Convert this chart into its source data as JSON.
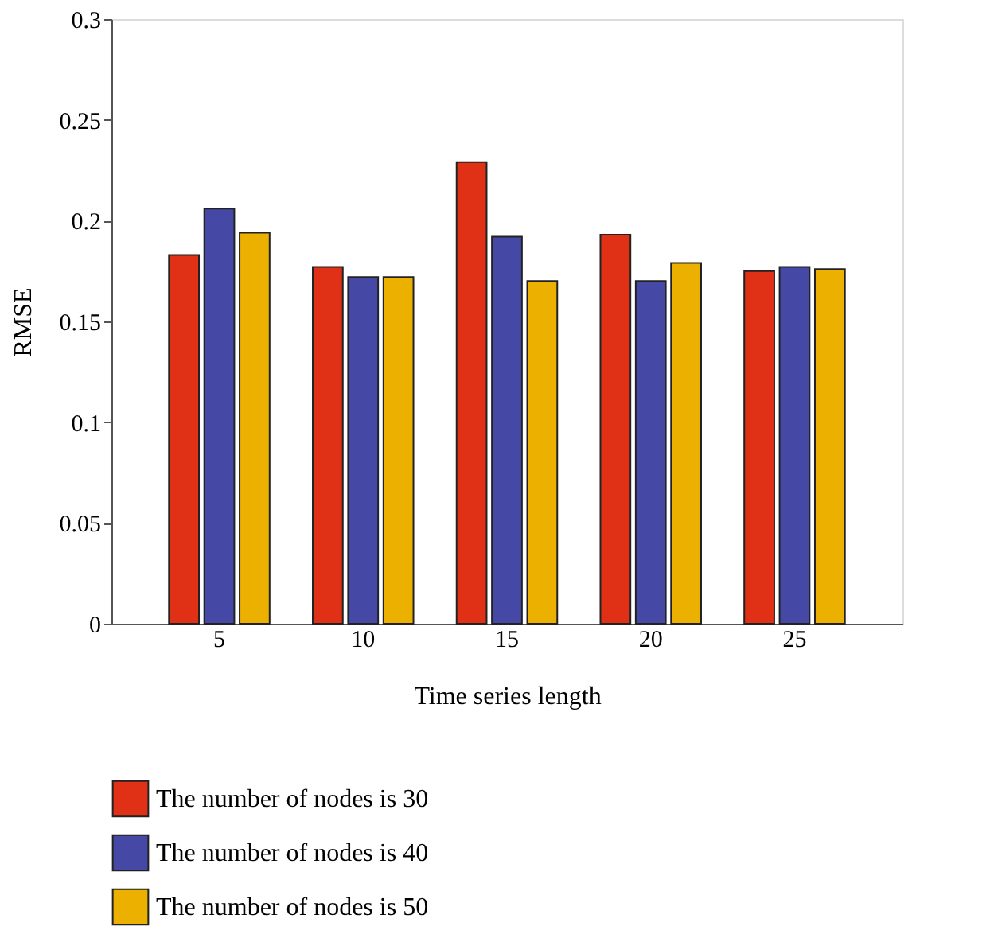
{
  "chart_data": {
    "type": "bar",
    "xlabel": "Time series length",
    "ylabel": "RMSE",
    "categories": [
      "5",
      "10",
      "15",
      "20",
      "25"
    ],
    "series": [
      {
        "name": "The number of nodes is 30",
        "color": "#e03015",
        "values": [
          0.183,
          0.177,
          0.229,
          0.193,
          0.175
        ]
      },
      {
        "name": "The number of nodes is 40",
        "color": "#4549a5",
        "values": [
          0.206,
          0.172,
          0.192,
          0.17,
          0.177
        ]
      },
      {
        "name": "The number of nodes is 50",
        "color": "#ecb100",
        "values": [
          0.194,
          0.172,
          0.17,
          0.179,
          0.176
        ]
      }
    ],
    "ylim": [
      0,
      0.3
    ],
    "yticks": [
      0,
      0.05,
      0.1,
      0.15,
      0.2,
      0.25,
      0.3
    ],
    "grid": false,
    "legend": "bottom"
  }
}
